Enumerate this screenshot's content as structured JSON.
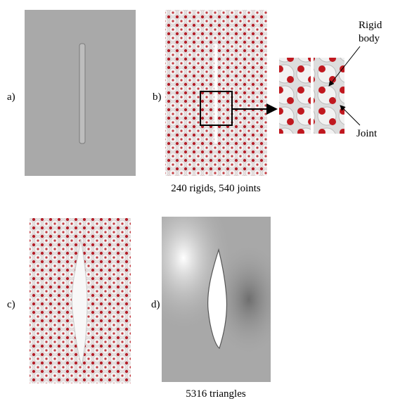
{
  "panels": [
    {
      "label": "a)"
    },
    {
      "label": "b)",
      "caption": "240 rigids, 540 joints"
    },
    {
      "label": "c)"
    },
    {
      "label": "d)",
      "caption": "5316 triangles"
    }
  ],
  "callouts": {
    "rigid_body": [
      "Rigid",
      "body"
    ],
    "joint": "Joint"
  }
}
